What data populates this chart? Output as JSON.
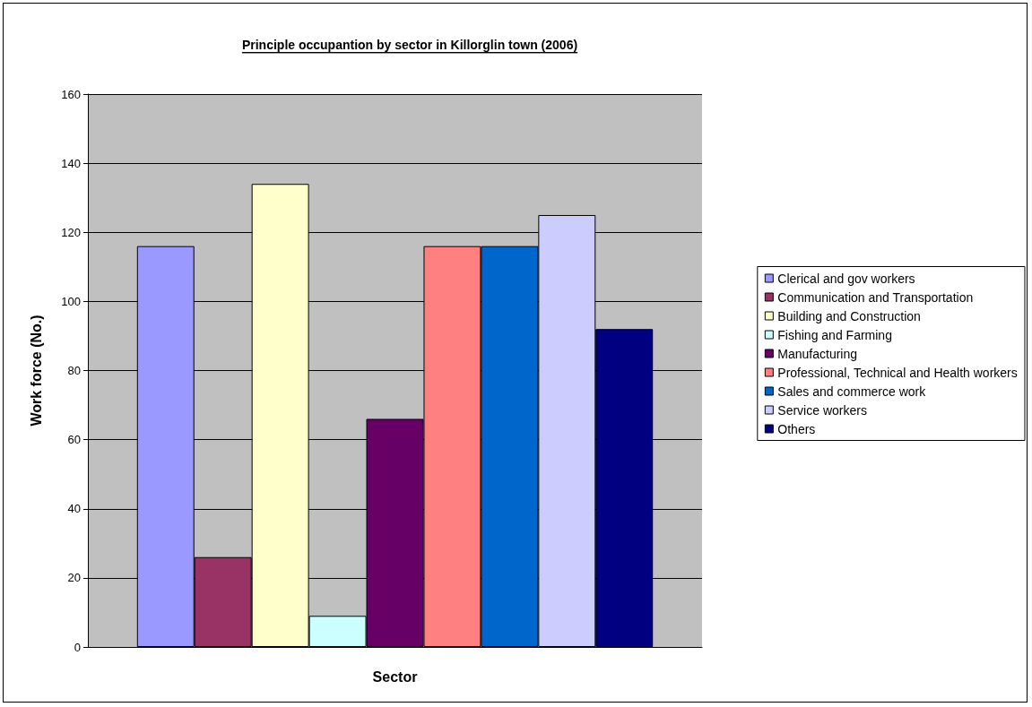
{
  "chart_data": {
    "type": "bar",
    "title": "Principle occupantion by sector in Killorglin town (2006)",
    "xlabel": "Sector",
    "ylabel": "Work force (No.)",
    "categories": [
      null
    ],
    "series": [
      {
        "name": "Clerical and gov workers",
        "color": "#9999ff",
        "values": [
          116
        ]
      },
      {
        "name": "Communication and Transportation",
        "color": "#993366",
        "values": [
          26
        ]
      },
      {
        "name": "Building and Construction",
        "color": "#ffffcc",
        "values": [
          134
        ]
      },
      {
        "name": "Fishing and Farming",
        "color": "#ccffff",
        "values": [
          9
        ]
      },
      {
        "name": "Manufacturing",
        "color": "#660066",
        "values": [
          66
        ]
      },
      {
        "name": "Professional, Technical and Health workers",
        "color": "#ff8080",
        "values": [
          116
        ]
      },
      {
        "name": "Sales and commerce work",
        "color": "#0066cc",
        "values": [
          116
        ]
      },
      {
        "name": "Service workers",
        "color": "#ccccff",
        "values": [
          125
        ]
      },
      {
        "name": "Others",
        "color": "#000080",
        "values": [
          92
        ]
      }
    ],
    "ylim": [
      0,
      160
    ],
    "yticks": [
      0,
      20,
      40,
      60,
      80,
      100,
      120,
      140,
      160
    ],
    "grid": "y",
    "legend": "right"
  }
}
